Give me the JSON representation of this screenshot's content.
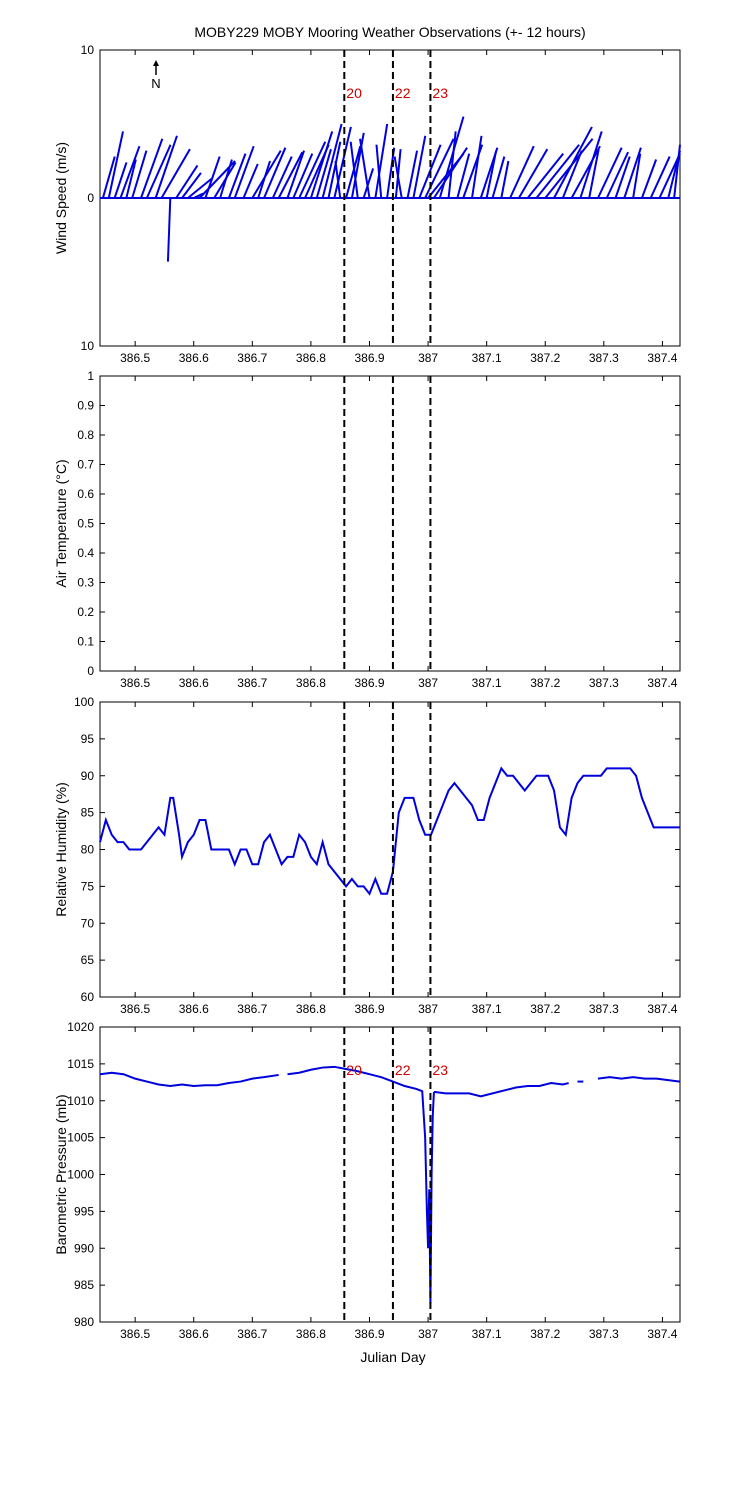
{
  "title": "MOBY229 MOBY Mooring Weather Observations (+- 12 hours)",
  "xlabel": "Julian Day",
  "north_label": "N",
  "colors": {
    "series": "#0000dd",
    "marker_label": "#cc0000",
    "axis": "#000000"
  },
  "chart_data": [
    {
      "type": "line",
      "panel": "wind",
      "ylabel": "Wind Speed (m/s)",
      "xlim": [
        386.44,
        387.43
      ],
      "ylim": [
        -10,
        10
      ],
      "yticks": [
        -10,
        0,
        10
      ],
      "ytick_labels": [
        "10",
        "0",
        "10"
      ],
      "xticks": [
        386.5,
        386.6,
        386.7,
        386.8,
        386.9,
        387,
        387.1,
        387.2,
        387.3,
        387.4
      ],
      "xtick_labels": [
        "386.5",
        "386.6",
        "386.7",
        "386.8",
        "386.9",
        "387",
        "387.1",
        "387.2",
        "387.3",
        "387.4"
      ],
      "markers": [
        {
          "x": 386.857,
          "label": "20"
        },
        {
          "x": 386.94,
          "label": "22"
        },
        {
          "x": 387.004,
          "label": "23"
        }
      ],
      "series": [
        {
          "stick_base_x": [
            386.445,
            386.455,
            386.465,
            386.475,
            386.485,
            386.495,
            386.51,
            386.52,
            386.535,
            386.545,
            386.56,
            386.57,
            386.58,
            386.59,
            386.6,
            386.61,
            386.62,
            386.635,
            386.645,
            386.66,
            386.67,
            386.685,
            386.7,
            386.71,
            386.72,
            386.735,
            386.745,
            386.76,
            386.77,
            386.78,
            386.79,
            386.8,
            386.81,
            386.82,
            386.83,
            386.84,
            386.85,
            386.86,
            386.87,
            386.88,
            386.89,
            386.9,
            386.91,
            386.92,
            386.93,
            386.945,
            386.955,
            386.965,
            386.975,
            386.985,
            386.995,
            387.0,
            387.01,
            387.02,
            387.035,
            387.05,
            387.06,
            387.075,
            387.09,
            387.1,
            387.11,
            387.125,
            387.14,
            387.155,
            387.17,
            387.185,
            387.2,
            387.215,
            387.23,
            387.245,
            387.26,
            387.275,
            387.29,
            387.305,
            387.32,
            387.335,
            387.35,
            387.365,
            387.38,
            387.395,
            387.41,
            387.42
          ],
          "stick_u": [
            0.5,
            0.6,
            0.5,
            0.8,
            0.4,
            0.6,
            0.9,
            1.0,
            0.9,
            1.2,
            -0.1,
            0.9,
            0.8,
            1.0,
            0.4,
            1.5,
            0.6,
            0.9,
            0.5,
            0.7,
            0.8,
            0.6,
            1.2,
            0.5,
            0.9,
            0.8,
            1.0,
            0.7,
            0.8,
            1.1,
            1.0,
            0.9,
            0.6,
            0.8,
            0.5,
            0.7,
            -0.2,
            0.6,
            0.5,
            -0.3,
            0.4,
            -0.4,
            0.5,
            -0.2,
            0.3,
            0.2,
            -0.3,
            0.4,
            0.5,
            0.9,
            1.2,
            1.5,
            1.4,
            1.0,
            0.3,
            0.5,
            0.8,
            0.4,
            0.7,
            0.4,
            0.5,
            0.3,
            1.0,
            1.2,
            1.5,
            1.8,
            2.0,
            1.6,
            0.8,
            1.2,
            0.9,
            0.4,
            1.0,
            0.9,
            0.6,
            0.7,
            0.3,
            0.6,
            0.8,
            1.1,
            1.2,
            0.8
          ],
          "stick_v": [
            2.8,
            4.5,
            2.4,
            3.5,
            2.6,
            3.2,
            4.0,
            3.6,
            4.2,
            3.3,
            -4.3,
            2.2,
            1.7,
            1.3,
            0.3,
            2.5,
            2.8,
            2.4,
            2.6,
            3.0,
            3.5,
            2.3,
            3.2,
            2.5,
            3.4,
            2.8,
            3.1,
            3.2,
            3.0,
            3.8,
            3.6,
            4.5,
            3.3,
            5.0,
            3.8,
            4.8,
            2.5,
            3.5,
            4.4,
            3.8,
            2.0,
            4.0,
            5.0,
            3.6,
            3.4,
            3.3,
            2.8,
            3.2,
            4.2,
            3.6,
            4.0,
            3.0,
            3.4,
            5.5,
            4.5,
            3.0,
            3.6,
            4.2,
            3.4,
            3.2,
            2.8,
            2.5,
            3.5,
            3.3,
            3.0,
            3.6,
            4.0,
            4.8,
            3.2,
            3.5,
            4.5,
            3.3,
            3.4,
            3.1,
            2.8,
            3.4,
            3.0,
            2.6,
            2.8,
            3.0,
            3.2,
            3.6
          ]
        }
      ]
    },
    {
      "type": "line",
      "panel": "air_temperature",
      "ylabel": "Air Temperature (°C)",
      "xlim": [
        386.44,
        387.43
      ],
      "ylim": [
        0,
        1
      ],
      "yticks": [
        0,
        0.1,
        0.2,
        0.3,
        0.4,
        0.5,
        0.6,
        0.7,
        0.8,
        0.9,
        1
      ],
      "ytick_labels": [
        "0",
        "0.1",
        "0.2",
        "0.3",
        "0.4",
        "0.5",
        "0.6",
        "0.7",
        "0.8",
        "0.9",
        "1"
      ],
      "xticks": [
        386.5,
        386.6,
        386.7,
        386.8,
        386.9,
        387,
        387.1,
        387.2,
        387.3,
        387.4
      ],
      "xtick_labels": [
        "386.5",
        "386.6",
        "386.7",
        "386.8",
        "386.9",
        "387",
        "387.1",
        "387.2",
        "387.3",
        "387.4"
      ],
      "markers": [
        {
          "x": 386.857
        },
        {
          "x": 386.94
        },
        {
          "x": 387.004
        }
      ],
      "series": []
    },
    {
      "type": "line",
      "panel": "relative_humidity",
      "ylabel": "Relative Humidity (%)",
      "xlim": [
        386.44,
        387.43
      ],
      "ylim": [
        60,
        100
      ],
      "yticks": [
        60,
        65,
        70,
        75,
        80,
        85,
        90,
        95,
        100
      ],
      "ytick_labels": [
        "60",
        "65",
        "70",
        "75",
        "80",
        "85",
        "90",
        "95",
        "100"
      ],
      "xticks": [
        386.5,
        386.6,
        386.7,
        386.8,
        386.9,
        387,
        387.1,
        387.2,
        387.3,
        387.4
      ],
      "xtick_labels": [
        "386.5",
        "386.6",
        "386.7",
        "386.8",
        "386.9",
        "387",
        "387.1",
        "387.2",
        "387.3",
        "387.4"
      ],
      "markers": [
        {
          "x": 386.857
        },
        {
          "x": 386.94
        },
        {
          "x": 387.004
        }
      ],
      "series": [
        {
          "x": [
            386.44,
            386.45,
            386.46,
            386.47,
            386.48,
            386.49,
            386.5,
            386.51,
            386.52,
            386.53,
            386.54,
            386.55,
            386.56,
            386.565,
            386.575,
            386.58,
            386.59,
            386.6,
            386.61,
            386.62,
            386.63,
            386.64,
            386.65,
            386.66,
            386.67,
            386.68,
            386.69,
            386.7,
            386.71,
            386.72,
            386.73,
            386.74,
            386.75,
            386.76,
            386.77,
            386.78,
            386.79,
            386.8,
            386.81,
            386.82,
            386.83,
            386.84,
            386.85,
            386.86,
            386.87,
            386.88,
            386.89,
            386.9,
            386.91,
            386.92,
            386.93,
            386.94,
            386.95,
            386.96,
            386.97,
            386.975,
            386.985,
            386.995,
            387.005,
            387.025,
            387.035,
            387.045,
            387.055,
            387.065,
            387.075,
            387.085,
            387.095,
            387.105,
            387.115,
            387.125,
            387.135,
            387.145,
            387.155,
            387.165,
            387.175,
            387.185,
            387.195,
            387.205,
            387.215,
            387.225,
            387.235,
            387.245,
            387.255,
            387.265,
            387.275,
            387.285,
            387.295,
            387.305,
            387.315,
            387.325,
            387.335,
            387.345,
            387.355,
            387.365,
            387.375,
            387.385,
            387.395,
            387.405,
            387.415,
            387.425,
            387.43
          ],
          "y": [
            81,
            84,
            82,
            81,
            81,
            80,
            80,
            80,
            81,
            82,
            83,
            82,
            87,
            87,
            82,
            79,
            81,
            82,
            84,
            84,
            80,
            80,
            80,
            80,
            78,
            80,
            80,
            78,
            78,
            81,
            82,
            80,
            78,
            79,
            79,
            82,
            81,
            79,
            78,
            81,
            78,
            77,
            76,
            75,
            76,
            75,
            75,
            74,
            76,
            74,
            74,
            77,
            85,
            87,
            87,
            87,
            84,
            82,
            82,
            86,
            88,
            89,
            88,
            87,
            86,
            84,
            84,
            87,
            89,
            91,
            90,
            90,
            89,
            88,
            89,
            90,
            90,
            90,
            88,
            83,
            82,
            87,
            89,
            90,
            90,
            90,
            90,
            91,
            91,
            91,
            91,
            91,
            90,
            87,
            85,
            83,
            83,
            83,
            83,
            83,
            83
          ],
          "break_after": []
        }
      ]
    },
    {
      "type": "line",
      "panel": "barometric_pressure",
      "ylabel": "Barometric Pressure (mb)",
      "xlim": [
        386.44,
        387.43
      ],
      "ylim": [
        980,
        1020
      ],
      "yticks": [
        980,
        985,
        990,
        995,
        1000,
        1005,
        1010,
        1015,
        1020
      ],
      "ytick_labels": [
        "980",
        "985",
        "990",
        "995",
        "1000",
        "1005",
        "1010",
        "1015",
        "1020"
      ],
      "xticks": [
        386.5,
        386.6,
        386.7,
        386.8,
        386.9,
        387,
        387.1,
        387.2,
        387.3,
        387.4
      ],
      "xtick_labels": [
        "386.5",
        "386.6",
        "386.7",
        "386.8",
        "386.9",
        "387",
        "387.1",
        "387.2",
        "387.3",
        "387.4"
      ],
      "markers": [
        {
          "x": 386.857,
          "label": "20"
        },
        {
          "x": 386.94,
          "label": "22"
        },
        {
          "x": 387.004,
          "label": "23"
        }
      ],
      "series": [
        {
          "segments": [
            {
              "x": [
                386.44,
                386.46,
                386.48,
                386.5,
                386.52,
                386.54,
                386.56,
                386.58,
                386.6,
                386.62,
                386.64,
                386.66,
                386.68,
                386.7,
                386.72,
                386.745
              ],
              "y": [
                1013.6,
                1013.8,
                1013.6,
                1013.0,
                1012.6,
                1012.2,
                1012.0,
                1012.2,
                1012.0,
                1012.1,
                1012.1,
                1012.4,
                1012.6,
                1013.0,
                1013.2,
                1013.5
              ]
            },
            {
              "x": [
                386.76,
                386.78,
                386.8,
                386.82,
                386.84,
                386.86,
                386.88,
                386.9,
                386.92,
                386.94,
                386.96,
                386.98,
                386.99,
                386.995,
                386.998,
                387.0,
                387.002,
                387.004,
                387.006,
                387.008,
                387.01
              ],
              "y": [
                1013.6,
                1013.8,
                1014.2,
                1014.5,
                1014.6,
                1014.3,
                1014.0,
                1013.6,
                1013.2,
                1012.6,
                1012.0,
                1011.6,
                1011.3,
                1005.0,
                995.0,
                990.0,
                998.0,
                982.5,
                1000.0,
                1008.0,
                1011.2
              ]
            },
            {
              "x": [
                387.01,
                387.03,
                387.05,
                387.07,
                387.09,
                387.11,
                387.13,
                387.15,
                387.17,
                387.19,
                387.21,
                387.23,
                387.24
              ],
              "y": [
                1011.2,
                1011.0,
                1011.0,
                1011.0,
                1010.6,
                1011.0,
                1011.4,
                1011.8,
                1012.0,
                1012.0,
                1012.4,
                1012.2,
                1012.4
              ]
            },
            {
              "x": [
                387.255,
                387.265
              ],
              "y": [
                1012.6,
                1012.6
              ]
            },
            {
              "x": [
                387.29,
                387.31,
                387.33,
                387.35,
                387.37,
                387.39,
                387.41,
                387.43
              ],
              "y": [
                1013.0,
                1013.2,
                1013.0,
                1013.2,
                1013.0,
                1013.0,
                1012.8,
                1012.6
              ]
            }
          ]
        }
      ]
    }
  ]
}
